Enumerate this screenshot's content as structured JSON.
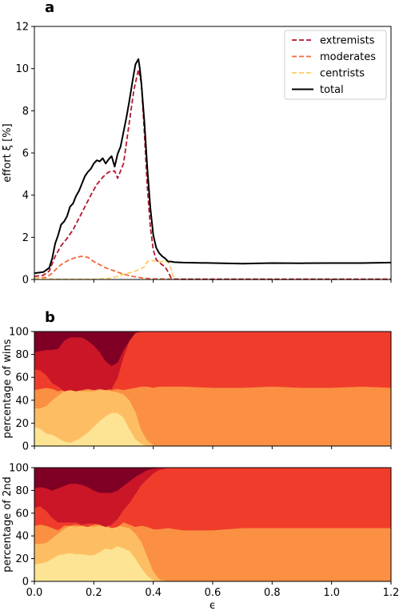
{
  "panel_labels": {
    "a": "a",
    "b": "b"
  },
  "colors": {
    "extremists": "#b5162f",
    "moderates": "#f36a39",
    "centrists": "#fdce66",
    "total": "#000000",
    "area_bands": [
      "#fde494",
      "#fdbe63",
      "#fb9043",
      "#f03d2b",
      "#cb1628",
      "#7f0024"
    ]
  },
  "chart_data": [
    {
      "id": "effort",
      "type": "line",
      "xlabel": "",
      "ylabel": "effort ξ [%]",
      "xlim": [
        0,
        1.2
      ],
      "ylim": [
        0,
        12
      ],
      "yticks": [
        0,
        2,
        4,
        6,
        8,
        10,
        12
      ],
      "grid": false,
      "legend_position": "top-right",
      "series": [
        {
          "name": "extremists",
          "style": "dashed",
          "x": [
            0,
            0.03,
            0.05,
            0.07,
            0.09,
            0.11,
            0.13,
            0.15,
            0.17,
            0.19,
            0.21,
            0.23,
            0.25,
            0.27,
            0.28,
            0.3,
            0.32,
            0.335,
            0.35,
            0.36,
            0.37,
            0.38,
            0.39,
            0.4,
            0.41,
            0.42,
            0.43,
            0.44,
            0.45,
            0.46,
            0.47,
            0.5,
            0.6,
            0.8,
            1.0,
            1.2
          ],
          "values": [
            0.15,
            0.2,
            0.4,
            1.1,
            1.6,
            1.95,
            2.35,
            2.9,
            3.45,
            4.0,
            4.5,
            4.85,
            5.1,
            5.15,
            4.8,
            5.5,
            7.5,
            9.0,
            9.95,
            9.3,
            7.0,
            4.4,
            2.5,
            1.4,
            0.95,
            0.8,
            0.7,
            0.6,
            0.35,
            0.08,
            0.02,
            0.01,
            0.01,
            0.01,
            0.01,
            0.01
          ]
        },
        {
          "name": "moderates",
          "style": "dashed",
          "x": [
            0,
            0.04,
            0.06,
            0.08,
            0.1,
            0.12,
            0.14,
            0.16,
            0.18,
            0.2,
            0.22,
            0.24,
            0.26,
            0.28,
            0.3,
            0.33,
            0.36,
            0.4,
            0.5,
            0.8,
            1.2
          ],
          "values": [
            0.05,
            0.1,
            0.3,
            0.6,
            0.8,
            0.95,
            1.05,
            1.1,
            1.05,
            0.85,
            0.7,
            0.55,
            0.45,
            0.35,
            0.25,
            0.15,
            0.08,
            0.03,
            0.01,
            0.01,
            0.01
          ]
        },
        {
          "name": "centrists",
          "style": "dashed",
          "x": [
            0,
            0.05,
            0.1,
            0.15,
            0.2,
            0.25,
            0.28,
            0.3,
            0.33,
            0.35,
            0.37,
            0.38,
            0.4,
            0.42,
            0.44,
            0.45,
            0.46,
            0.47
          ],
          "values": [
            0.05,
            0.03,
            0.01,
            0.01,
            0.01,
            0.05,
            0.15,
            0.25,
            0.35,
            0.45,
            0.6,
            0.85,
            0.9,
            0.82,
            0.88,
            0.82,
            0.5,
            0.0
          ]
        },
        {
          "name": "total",
          "style": "solid",
          "x": [
            0,
            0.03,
            0.05,
            0.06,
            0.07,
            0.08,
            0.09,
            0.1,
            0.11,
            0.12,
            0.13,
            0.14,
            0.15,
            0.16,
            0.17,
            0.18,
            0.19,
            0.2,
            0.21,
            0.22,
            0.23,
            0.24,
            0.25,
            0.26,
            0.27,
            0.28,
            0.29,
            0.3,
            0.31,
            0.32,
            0.33,
            0.34,
            0.35,
            0.355,
            0.36,
            0.37,
            0.38,
            0.39,
            0.4,
            0.41,
            0.42,
            0.43,
            0.44,
            0.45,
            0.46,
            0.47,
            0.5,
            0.6,
            0.7,
            0.8,
            0.9,
            1.0,
            1.1,
            1.2
          ],
          "values": [
            0.3,
            0.35,
            0.55,
            1.0,
            1.7,
            2.1,
            2.6,
            2.75,
            3.0,
            3.45,
            3.6,
            3.95,
            4.2,
            4.55,
            4.9,
            5.1,
            5.25,
            5.5,
            5.65,
            5.6,
            5.75,
            5.5,
            5.7,
            5.85,
            5.35,
            5.95,
            6.3,
            7.0,
            7.7,
            8.5,
            9.4,
            10.2,
            10.45,
            10.0,
            9.3,
            7.5,
            5.3,
            3.4,
            2.1,
            1.5,
            1.25,
            1.1,
            1.0,
            0.85,
            0.85,
            0.82,
            0.8,
            0.78,
            0.75,
            0.78,
            0.77,
            0.78,
            0.78,
            0.8
          ]
        }
      ]
    },
    {
      "id": "wins",
      "type": "area",
      "xlabel": "",
      "ylabel": "percentage of wins",
      "xlim": [
        0,
        1.2
      ],
      "ylim": [
        0,
        100
      ],
      "yticks": [
        0,
        20,
        40,
        60,
        80,
        100
      ],
      "grid": false,
      "x": [
        0,
        0.02,
        0.04,
        0.06,
        0.08,
        0.1,
        0.12,
        0.14,
        0.16,
        0.18,
        0.2,
        0.22,
        0.24,
        0.26,
        0.28,
        0.3,
        0.32,
        0.34,
        0.36,
        0.38,
        0.4,
        0.42,
        0.45,
        0.5,
        0.6,
        0.7,
        0.8,
        0.9,
        1.0,
        1.1,
        1.2
      ],
      "boundaries": [
        [
          17,
          15,
          11,
          10,
          7,
          4,
          3,
          5,
          8,
          12,
          17,
          22,
          26,
          29,
          29,
          25,
          15,
          6,
          2,
          0,
          0,
          0,
          0,
          0,
          0,
          0,
          0,
          0,
          0,
          0,
          0
        ],
        [
          33,
          33,
          35,
          40,
          44,
          48,
          49,
          49,
          48,
          48,
          48,
          49,
          49,
          48,
          47,
          45,
          40,
          30,
          14,
          5,
          1,
          0,
          0,
          0,
          0,
          0,
          0,
          0,
          0,
          0,
          0
        ],
        [
          49,
          50,
          51,
          50,
          48,
          49,
          50,
          51,
          50,
          50,
          50,
          51,
          50,
          49,
          50,
          49,
          50,
          51,
          52,
          52,
          51,
          52,
          52,
          52,
          51,
          51,
          52,
          51,
          51,
          52,
          51
        ],
        [
          67,
          66,
          62,
          55,
          52,
          48,
          49,
          48,
          49,
          50,
          49,
          50,
          49,
          50,
          60,
          78,
          92,
          99,
          100,
          100,
          100,
          100,
          100,
          100,
          100,
          100,
          100,
          100,
          100,
          100,
          100
        ],
        [
          82,
          83,
          84,
          84,
          85,
          92,
          95,
          95,
          95,
          92,
          88,
          82,
          74,
          70,
          73,
          84,
          92,
          99,
          100,
          100,
          100,
          100,
          100,
          100,
          100,
          100,
          100,
          100,
          100,
          100,
          100
        ],
        [
          100,
          100,
          100,
          100,
          100,
          100,
          100,
          100,
          100,
          100,
          100,
          100,
          100,
          100,
          100,
          100,
          100,
          100,
          100,
          100,
          100,
          100,
          100,
          100,
          100,
          100,
          100,
          100,
          100,
          100,
          100
        ]
      ]
    },
    {
      "id": "second",
      "type": "area",
      "xlabel": "ϵ",
      "ylabel": "percentage of 2nd",
      "xlim": [
        0,
        1.2
      ],
      "ylim": [
        0,
        100
      ],
      "yticks": [
        0,
        20,
        40,
        60,
        80,
        100
      ],
      "xticks": [
        "0.0",
        "0.2",
        "0.4",
        "0.6",
        "0.8",
        "1.0",
        "1.2"
      ],
      "grid": false,
      "x": [
        0,
        0.02,
        0.04,
        0.06,
        0.08,
        0.1,
        0.12,
        0.14,
        0.16,
        0.18,
        0.2,
        0.22,
        0.24,
        0.26,
        0.28,
        0.3,
        0.32,
        0.34,
        0.36,
        0.38,
        0.4,
        0.42,
        0.45,
        0.5,
        0.6,
        0.7,
        0.8,
        0.9,
        1.0,
        1.1,
        1.2
      ],
      "boundaries": [
        [
          15,
          16,
          17,
          20,
          23,
          24,
          25,
          24,
          24,
          23,
          23,
          26,
          29,
          28,
          31,
          29,
          27,
          20,
          12,
          5,
          1,
          0,
          0,
          0,
          0,
          0,
          0,
          0,
          0,
          0,
          0
        ],
        [
          33,
          33,
          34,
          38,
          42,
          46,
          49,
          48,
          49,
          49,
          48,
          49,
          48,
          47,
          49,
          48,
          47,
          42,
          35,
          22,
          9,
          2,
          0,
          0,
          0,
          0,
          0,
          0,
          0,
          0,
          0
        ],
        [
          49,
          50,
          49,
          47,
          45,
          49,
          49,
          50,
          49,
          48,
          50,
          51,
          50,
          47,
          48,
          52,
          50,
          48,
          49,
          48,
          46,
          46,
          47,
          45,
          45,
          47,
          47,
          47,
          47,
          47,
          47
        ],
        [
          65,
          66,
          62,
          56,
          52,
          52,
          52,
          52,
          50,
          51,
          51,
          50,
          48,
          50,
          55,
          63,
          69,
          77,
          85,
          90,
          95,
          98,
          100,
          100,
          100,
          100,
          100,
          100,
          100,
          100,
          100
        ],
        [
          82,
          83,
          82,
          80,
          82,
          84,
          86,
          86,
          85,
          83,
          80,
          78,
          78,
          78,
          80,
          84,
          88,
          92,
          95,
          98,
          99,
          100,
          100,
          100,
          100,
          100,
          100,
          100,
          100,
          100,
          100
        ],
        [
          100,
          100,
          100,
          100,
          100,
          100,
          100,
          100,
          100,
          100,
          100,
          100,
          100,
          100,
          100,
          100,
          100,
          100,
          100,
          100,
          100,
          100,
          100,
          100,
          100,
          100,
          100,
          100,
          100,
          100,
          100
        ]
      ]
    }
  ]
}
